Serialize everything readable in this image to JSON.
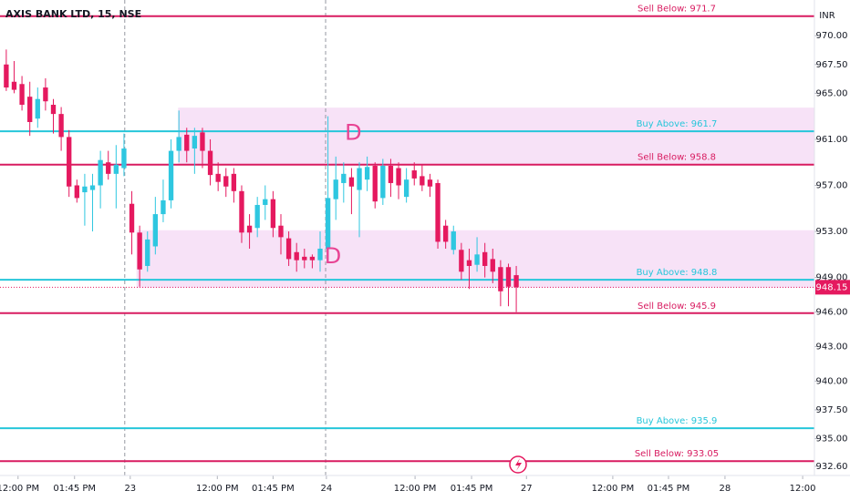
{
  "chart_data": {
    "type": "candlestick",
    "title": "AXIS BANK LTD, 15, NSE",
    "currency": "INR",
    "up_color": "#2ec7e0",
    "down_color": "#e5195f",
    "xlim": [
      -0.8,
      103
    ],
    "ylim": [
      931.8,
      973.1
    ],
    "yticks": [
      {
        "value": 970,
        "label": "970.00"
      },
      {
        "value": 967.5,
        "label": "967.50"
      },
      {
        "value": 965,
        "label": "965.00"
      },
      {
        "value": 961,
        "label": "961.00"
      },
      {
        "value": 957,
        "label": "957.00"
      },
      {
        "value": 953,
        "label": "953.00"
      },
      {
        "value": 949,
        "label": "949.00"
      },
      {
        "value": 946,
        "label": "946.00"
      },
      {
        "value": 943,
        "label": "943.00"
      },
      {
        "value": 940,
        "label": "940.00"
      },
      {
        "value": 937.5,
        "label": "937.50"
      },
      {
        "value": 935,
        "label": "935.00"
      },
      {
        "value": 932.6,
        "label": "932.60"
      }
    ],
    "xticks": [
      {
        "value": 1.5,
        "label": "12:00 PM"
      },
      {
        "value": 8.7,
        "label": "01:45 PM"
      },
      {
        "value": 15.8,
        "label": "23"
      },
      {
        "value": 26.9,
        "label": "12:00 PM"
      },
      {
        "value": 34,
        "label": "01:45 PM"
      },
      {
        "value": 40.8,
        "label": "24"
      },
      {
        "value": 52.1,
        "label": "12:00 PM"
      },
      {
        "value": 59.3,
        "label": "01:45 PM"
      },
      {
        "value": 66.3,
        "label": "27"
      },
      {
        "value": 77.3,
        "label": "12:00 PM"
      },
      {
        "value": 84.4,
        "label": "01:45 PM"
      },
      {
        "value": 91.6,
        "label": "28"
      },
      {
        "value": 101.5,
        "label": "12:00"
      }
    ],
    "separators": [
      15.1,
      40.7
    ],
    "open": [
      967.5,
      966.0,
      965.8,
      964.7,
      962.8,
      965.5,
      964.0,
      963.2,
      961.2,
      957.0,
      956.4,
      956.6,
      957.0,
      959.0,
      958.0,
      958.5,
      955.4,
      952.9,
      950.0,
      951.7,
      954.5,
      955.7,
      960.0,
      961.4,
      960.2,
      961.6,
      960.0,
      958.0,
      957.8,
      958.0,
      956.5,
      953.5,
      953.3,
      955.3,
      955.8,
      953.5,
      952.4,
      951.2,
      950.8,
      950.8,
      950.5,
      951.5,
      955.8,
      957.2,
      957.7,
      956.6,
      957.5,
      958.7,
      955.9,
      958.7,
      958.5,
      956.0,
      958.3,
      957.8,
      957.5,
      957.2,
      953.5,
      951.4,
      951.4,
      950.5,
      950.1,
      951.2,
      950.6,
      949.9,
      949.9,
      949.2
    ],
    "high": [
      968.8,
      967.8,
      966.5,
      966.0,
      965.5,
      966.3,
      964.5,
      963.8,
      961.8,
      957.5,
      958.0,
      958.0,
      960.0,
      960.0,
      960.5,
      961.5,
      956.5,
      953.5,
      953.0,
      956.0,
      957.5,
      961.0,
      963.5,
      962.0,
      962.0,
      962.0,
      961.0,
      959.0,
      958.5,
      958.5,
      957.0,
      954.5,
      956.0,
      957.0,
      956.5,
      954.5,
      953.0,
      952.0,
      951.5,
      951.0,
      953.0,
      963.0,
      959.5,
      959.0,
      958.5,
      959.0,
      959.5,
      959.0,
      959.3,
      959.3,
      959.0,
      958.5,
      959.0,
      958.8,
      958.0,
      957.5,
      954.0,
      953.5,
      952.0,
      951.5,
      952.5,
      952.0,
      951.5,
      950.5,
      950.2,
      950.0
    ],
    "low": [
      965.2,
      965.0,
      963.5,
      961.3,
      962.0,
      963.5,
      961.5,
      960.0,
      956.0,
      955.5,
      953.5,
      953.0,
      955.0,
      957.5,
      955.0,
      957.8,
      951.0,
      948.2,
      949.5,
      951.0,
      953.8,
      955.0,
      959.0,
      959.0,
      958.0,
      958.5,
      957.0,
      956.5,
      956.0,
      955.5,
      952.0,
      951.5,
      952.5,
      954.0,
      952.5,
      951.0,
      950.0,
      949.5,
      949.8,
      949.8,
      949.5,
      950.8,
      954.0,
      955.5,
      954.5,
      952.5,
      956.5,
      955.0,
      955.3,
      956.0,
      955.8,
      955.5,
      957.0,
      956.5,
      956.0,
      951.5,
      951.5,
      951.0,
      948.8,
      948.0,
      949.5,
      949.0,
      948.5,
      946.5,
      946.5,
      946.0
    ],
    "close": [
      965.5,
      965.3,
      964.0,
      962.5,
      964.5,
      964.3,
      963.2,
      961.2,
      956.9,
      955.9,
      956.9,
      957.0,
      959.2,
      958.0,
      958.8,
      960.2,
      952.9,
      949.7,
      952.3,
      954.5,
      955.7,
      960.0,
      961.2,
      960.0,
      961.3,
      960.0,
      957.9,
      957.3,
      956.9,
      956.5,
      952.9,
      952.9,
      955.3,
      955.8,
      953.3,
      952.5,
      950.6,
      950.5,
      950.5,
      950.5,
      951.5,
      955.9,
      957.5,
      958.0,
      956.9,
      958.5,
      958.6,
      955.6,
      958.7,
      957.2,
      957.0,
      957.5,
      957.6,
      957.0,
      956.9,
      952.1,
      952.1,
      953.0,
      949.5,
      950.0,
      951.0,
      950.0,
      949.5,
      947.8,
      948.2,
      948.15
    ],
    "last_price": 948.15,
    "zones": [
      {
        "x_start": 21.9,
        "top": 963.75,
        "bottom": 958.8
      },
      {
        "x_start": 16.6,
        "top": 953.1,
        "bottom": 948.1
      }
    ],
    "levels": [
      {
        "label": "Sell Below: 971.7",
        "value": 971.7,
        "color": "#d81b60"
      },
      {
        "label": "Buy Above: 961.7",
        "value": 961.7,
        "color": "#26c6da"
      },
      {
        "label": "Sell Below: 958.8",
        "value": 958.8,
        "color": "#d81b60"
      },
      {
        "label": "Buy Above: 948.8",
        "value": 948.8,
        "color": "#26c6da"
      },
      {
        "label": "Sell Below: 945.9",
        "value": 945.9,
        "color": "#d81b60"
      },
      {
        "label": "Buy Above: 935.9",
        "value": 935.9,
        "color": "#26c6da"
      },
      {
        "label": "Sell Below: 933.05",
        "value": 933.05,
        "color": "#d81b60"
      }
    ],
    "annotations": [
      {
        "text": "D",
        "x": 43.3,
        "y": 961.5
      },
      {
        "text": "D",
        "x": 40.7,
        "y": 950.8
      }
    ]
  }
}
